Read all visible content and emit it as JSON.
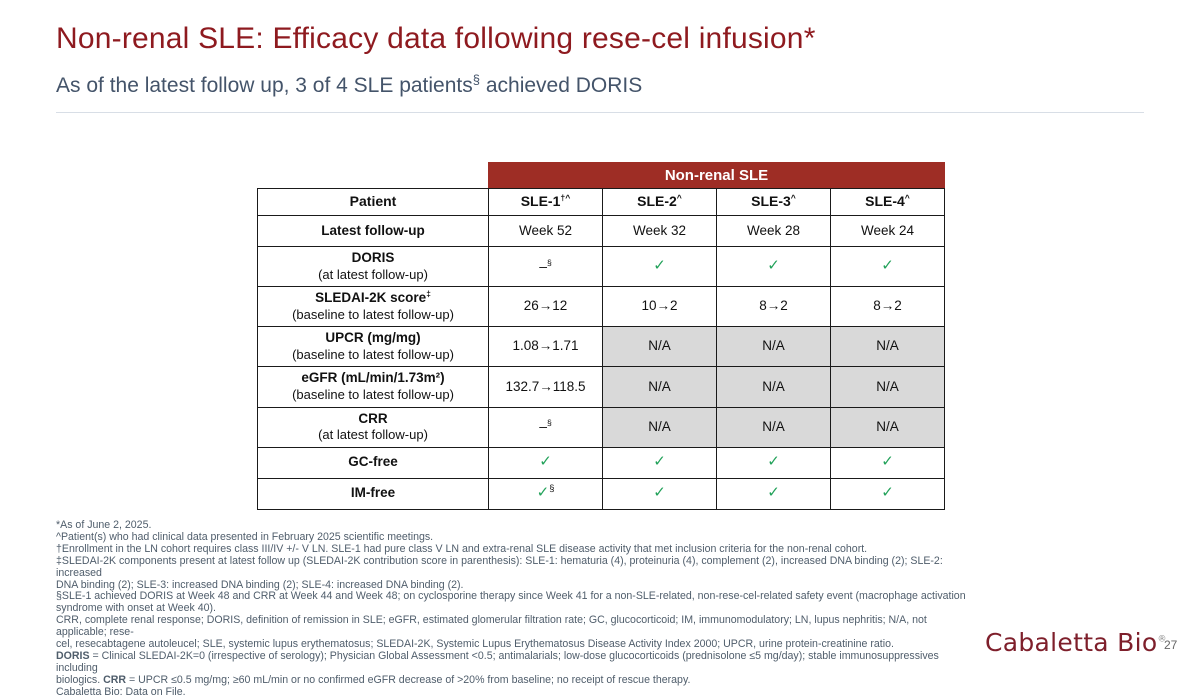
{
  "slide": {
    "title": "Non-renal SLE: Efficacy data following rese-cel infusion*",
    "subtitle": {
      "pre": "As of the latest follow up, 3 of 4 SLE patients",
      "sup": "§",
      "post": " achieved DORIS"
    },
    "logo": {
      "text": "Cabaletta Bio",
      "registered": "®"
    },
    "page_number": "27"
  },
  "colors": {
    "title_red": "#8E1A1F",
    "subtitle_slate": "#44546A",
    "accent_red": "#9E2D25",
    "check_green": "#22A25A",
    "na_gray": "#D9D9D9",
    "footnote_gray": "#4F5D6B",
    "logo_maroon": "#7E1F2B"
  },
  "table": {
    "banner": "Non-renal SLE",
    "columns": [
      {
        "text": "Patient",
        "sup": ""
      },
      {
        "text": "SLE-1",
        "sup": "†^"
      },
      {
        "text": "SLE-2",
        "sup": "^"
      },
      {
        "text": "SLE-3",
        "sup": "^"
      },
      {
        "text": "SLE-4",
        "sup": "^"
      }
    ],
    "rows": [
      {
        "label": "Latest follow-up",
        "sup": "",
        "sub": "",
        "cells": [
          {
            "kind": "text",
            "text": "Week 52"
          },
          {
            "kind": "text",
            "text": "Week 32"
          },
          {
            "kind": "text",
            "text": "Week 28"
          },
          {
            "kind": "text",
            "text": "Week 24"
          }
        ]
      },
      {
        "label": "DORIS",
        "sup": "",
        "sub": "(at latest follow-up)",
        "cells": [
          {
            "kind": "dash",
            "text": "–",
            "sup": "§"
          },
          {
            "kind": "check",
            "text": "✓"
          },
          {
            "kind": "check",
            "text": "✓"
          },
          {
            "kind": "check",
            "text": "✓"
          }
        ]
      },
      {
        "label": "SLEDAI-2K score",
        "sup": "‡",
        "sub": "(baseline to latest follow-up)",
        "cells": [
          {
            "kind": "text",
            "text": "26→12"
          },
          {
            "kind": "text",
            "text": "10→2"
          },
          {
            "kind": "text",
            "text": "8→2"
          },
          {
            "kind": "text",
            "text": "8→2"
          }
        ]
      },
      {
        "label": "UPCR (mg/mg)",
        "sup": "",
        "sub": "(baseline to latest follow-up)",
        "cells": [
          {
            "kind": "text",
            "text": "1.08→1.71"
          },
          {
            "kind": "na",
            "text": "N/A"
          },
          {
            "kind": "na",
            "text": "N/A"
          },
          {
            "kind": "na",
            "text": "N/A"
          }
        ]
      },
      {
        "label": "eGFR (mL/min/1.73m²)",
        "sup": "",
        "sub": "(baseline to latest follow-up)",
        "cells": [
          {
            "kind": "text",
            "text": "132.7→118.5"
          },
          {
            "kind": "na",
            "text": "N/A"
          },
          {
            "kind": "na",
            "text": "N/A"
          },
          {
            "kind": "na",
            "text": "N/A"
          }
        ]
      },
      {
        "label": "CRR",
        "sup": "",
        "sub": "(at latest follow-up)",
        "cells": [
          {
            "kind": "dash",
            "text": "–",
            "sup": "§"
          },
          {
            "kind": "na",
            "text": "N/A"
          },
          {
            "kind": "na",
            "text": "N/A"
          },
          {
            "kind": "na",
            "text": "N/A"
          }
        ]
      },
      {
        "label": "GC-free",
        "sup": "",
        "sub": "",
        "cells": [
          {
            "kind": "check",
            "text": "✓"
          },
          {
            "kind": "check",
            "text": "✓"
          },
          {
            "kind": "check",
            "text": "✓"
          },
          {
            "kind": "check",
            "text": "✓"
          }
        ]
      },
      {
        "label": "IM-free",
        "sup": "",
        "sub": "",
        "cells": [
          {
            "kind": "check",
            "text": "✓",
            "sup": "§"
          },
          {
            "kind": "check",
            "text": "✓"
          },
          {
            "kind": "check",
            "text": "✓"
          },
          {
            "kind": "check",
            "text": "✓"
          }
        ]
      }
    ]
  },
  "footnotes": {
    "lines": [
      [
        {
          "t": "*As of June 2, 2025."
        }
      ],
      [
        {
          "t": "^Patient(s) who had clinical data presented in February 2025 scientific meetings."
        }
      ],
      [
        {
          "t": "†Enrollment in the LN cohort requires class III/IV +/- V LN. SLE-1 had pure class V LN and extra-renal SLE disease activity that met inclusion criteria for the non-renal cohort."
        }
      ],
      [
        {
          "t": "‡SLEDAI-2K components present at latest follow up (SLEDAI-2K contribution score in parenthesis): SLE-1: hematuria (4), proteinuria (4), complement (2), increased DNA binding (2); SLE-2: increased"
        }
      ],
      [
        {
          "t": "DNA binding (2); SLE-3: increased DNA binding (2); SLE-4: increased DNA binding (2)."
        }
      ],
      [
        {
          "t": "§SLE-1 achieved DORIS at Week 48 and CRR at Week 44 and Week 48; on cyclosporine therapy since Week 41 for a non-SLE-related, non-rese-cel-related safety event (macrophage activation"
        }
      ],
      [
        {
          "t": "syndrome with onset at Week 40)."
        }
      ],
      [
        {
          "t": "CRR, complete renal response; DORIS, definition of remission in SLE; eGFR, estimated glomerular filtration rate; GC, glucocorticoid; IM, immunomodulatory; LN, lupus nephritis; N/A, not applicable; rese-"
        }
      ],
      [
        {
          "t": "cel, resecabtagene autoleucel; SLE, systemic lupus erythematosus; SLEDAI-2K, Systemic Lupus Erythematosus Disease Activity Index 2000; UPCR, urine protein-creatinine ratio."
        }
      ],
      [
        {
          "t": "DORIS",
          "b": true
        },
        {
          "t": " = Clinical SLEDAI-2K=0 (irrespective of serology); Physician Global Assessment <0.5; antimalarials; low-dose glucocorticoids (prednisolone ≤5 mg/day); stable immunosuppressives including"
        }
      ],
      [
        {
          "t": "biologics. "
        },
        {
          "t": "CRR",
          "b": true
        },
        {
          "t": " = UPCR ≤0.5 mg/mg; ≥60 mL/min or no confirmed eGFR decrease of >20% from baseline; no receipt of rescue therapy."
        }
      ],
      [
        {
          "t": "Cabaletta Bio: Data on File."
        }
      ]
    ]
  }
}
